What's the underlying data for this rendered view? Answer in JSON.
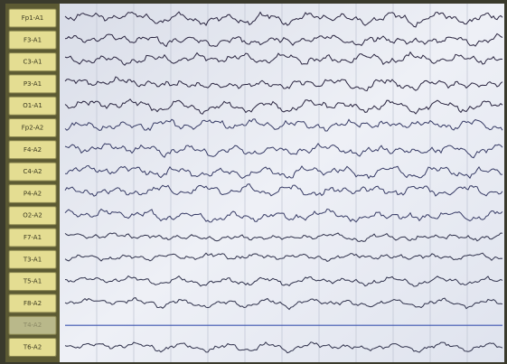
{
  "channels": [
    {
      "label": "Fp1-A1"
    },
    {
      "label": "F3-A1"
    },
    {
      "label": "C3-A1"
    },
    {
      "label": "P3-A1"
    },
    {
      "label": "O1-A1"
    },
    {
      "label": "Fp2-A2"
    },
    {
      "label": "F4-A2"
    },
    {
      "label": "C4-A2"
    },
    {
      "label": "P4-A2"
    },
    {
      "label": "O2-A2"
    },
    {
      "label": "F7-A1"
    },
    {
      "label": "T3-A1"
    },
    {
      "label": "T5-A1"
    },
    {
      "label": "F8-A2"
    },
    {
      "label": "T4-A2",
      "disabled": true
    },
    {
      "label": "T6-A2"
    }
  ]
}
